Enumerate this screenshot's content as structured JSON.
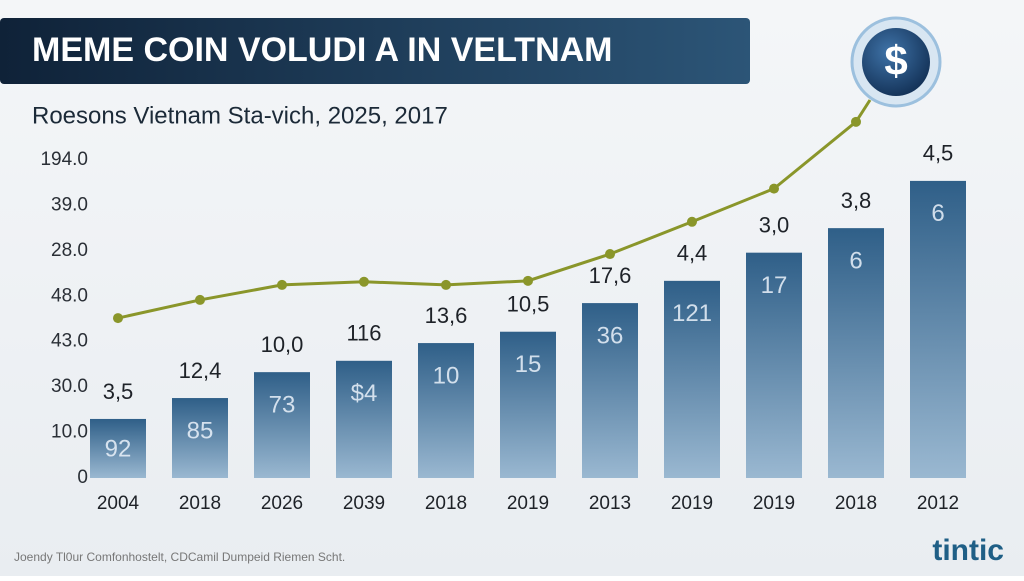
{
  "chart_data": {
    "type": "bar_line",
    "title": "MEME COIN VOLUDI A IN VELTNAM",
    "subtitle": "Roesons Vietnam Sta-vich, 2025, 2017",
    "categories": [
      "2004",
      "2018",
      "2026",
      "2039",
      "2018",
      "2019",
      "2013",
      "2019",
      "2019",
      "2018",
      "2012"
    ],
    "y_axis_labels": [
      "0",
      "10.0",
      "30.0",
      "43.0",
      "48.0",
      "28.0",
      "39.0",
      "194.0"
    ],
    "ylim": [
      0,
      7
    ],
    "bars": {
      "color": "#3f6f98",
      "values": [
        1.3,
        1.76,
        2.33,
        2.58,
        2.97,
        3.22,
        3.85,
        4.34,
        4.96,
        5.5,
        6.54
      ],
      "top_labels": [
        "3,5",
        "12,4",
        "10,0",
        "116",
        "13,6",
        "10,5",
        "17,6",
        "4,4",
        "3,0",
        "3,8",
        "4,5"
      ],
      "inner_labels": [
        "92",
        "85",
        "73",
        "$4",
        "10",
        "15",
        "36",
        "121",
        "17",
        "6",
        "6"
      ]
    },
    "line": {
      "color": "#8a962a",
      "values": [
        3.52,
        3.92,
        4.25,
        4.32,
        4.25,
        4.34,
        4.93,
        5.64,
        6.37,
        7.84,
        null
      ]
    },
    "icon": "$",
    "footer": "Joendy Tl0ur Comfonhostelt, CDCamil Dumpeid Riemen Scht.",
    "logo": "tintic"
  }
}
